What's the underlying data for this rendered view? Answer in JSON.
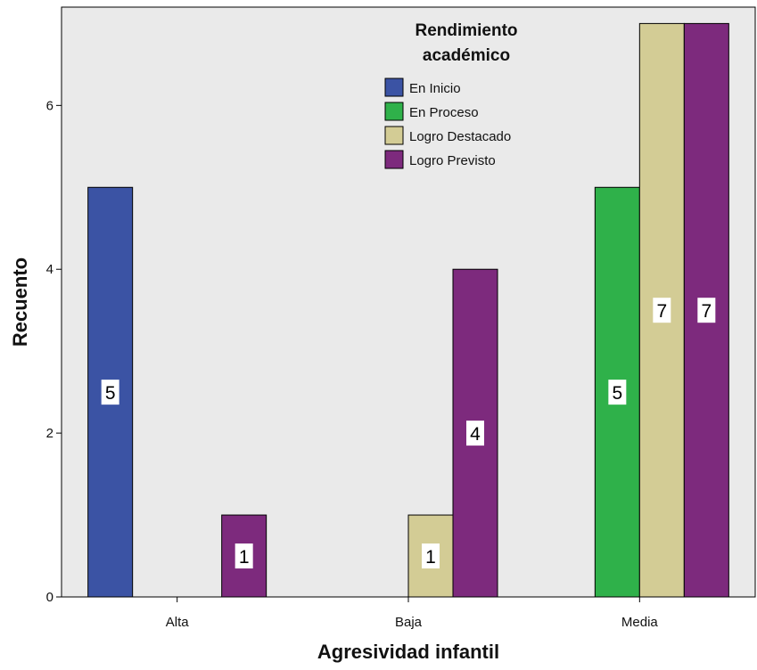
{
  "chart_data": {
    "type": "bar",
    "xlabel": "Agresividad infantil",
    "ylabel": "Recuento",
    "ylim": [
      0,
      7.2
    ],
    "y_ticks": [
      0,
      2,
      4,
      6
    ],
    "categories": [
      "Alta",
      "Baja",
      "Media"
    ],
    "legend": {
      "title_line1": "Rendimiento",
      "title_line2": "académico",
      "placement": "top-center"
    },
    "series": [
      {
        "name": "En Inicio",
        "color": "#3b53a4",
        "values": [
          5,
          0,
          0
        ]
      },
      {
        "name": "En Proceso",
        "color": "#2fb14a",
        "values": [
          0,
          0,
          5
        ]
      },
      {
        "name": "Logro Destacado",
        "color": "#d3cc95",
        "values": [
          0,
          1,
          7
        ]
      },
      {
        "name": "Logro Previsto",
        "color": "#7d2a7d",
        "values": [
          1,
          4,
          7
        ]
      }
    ],
    "background_color": "#eaeaea",
    "grid": false
  }
}
